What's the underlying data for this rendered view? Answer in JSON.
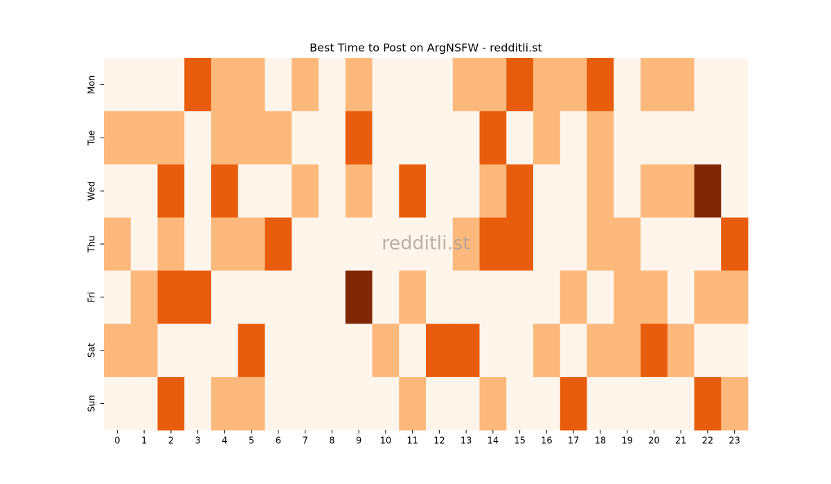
{
  "chart_data": {
    "type": "heatmap",
    "title": "Best Time to Post on ArgNSFW - redditli.st",
    "watermark": "redditli.st",
    "x": [
      0,
      1,
      2,
      3,
      4,
      5,
      6,
      7,
      8,
      9,
      10,
      11,
      12,
      13,
      14,
      15,
      16,
      17,
      18,
      19,
      20,
      21,
      22,
      23
    ],
    "y": [
      "Mon",
      "Tue",
      "Wed",
      "Thu",
      "Fri",
      "Sat",
      "Sun"
    ],
    "values": [
      [
        0,
        0,
        0,
        2,
        1,
        1,
        0,
        1,
        0,
        1,
        0,
        0,
        0,
        1,
        1,
        2,
        1,
        1,
        2,
        0,
        1,
        1,
        0,
        0
      ],
      [
        1,
        1,
        1,
        0,
        1,
        1,
        1,
        0,
        0,
        2,
        0,
        0,
        0,
        0,
        2,
        0,
        1,
        0,
        1,
        0,
        0,
        0,
        0,
        0
      ],
      [
        0,
        0,
        2,
        0,
        2,
        0,
        0,
        1,
        0,
        1,
        0,
        2,
        0,
        0,
        1,
        2,
        0,
        0,
        1,
        0,
        1,
        1,
        3,
        0
      ],
      [
        1,
        0,
        1,
        0,
        1,
        1,
        2,
        0,
        0,
        0,
        0,
        0,
        0,
        1,
        2,
        2,
        0,
        0,
        1,
        1,
        0,
        0,
        0,
        2
      ],
      [
        0,
        1,
        2,
        2,
        0,
        0,
        0,
        0,
        0,
        3,
        0,
        1,
        0,
        0,
        0,
        0,
        0,
        1,
        0,
        1,
        1,
        0,
        1,
        1
      ],
      [
        1,
        1,
        0,
        0,
        0,
        2,
        0,
        0,
        0,
        0,
        1,
        0,
        2,
        2,
        0,
        0,
        1,
        0,
        1,
        1,
        2,
        1,
        0,
        0
      ],
      [
        0,
        0,
        2,
        0,
        1,
        1,
        0,
        0,
        0,
        0,
        0,
        1,
        0,
        0,
        1,
        0,
        0,
        2,
        0,
        0,
        0,
        0,
        2,
        1
      ]
    ],
    "colormap": [
      "#fff5eb",
      "#fdb87b",
      "#e85d0d",
      "#7f2704"
    ]
  }
}
